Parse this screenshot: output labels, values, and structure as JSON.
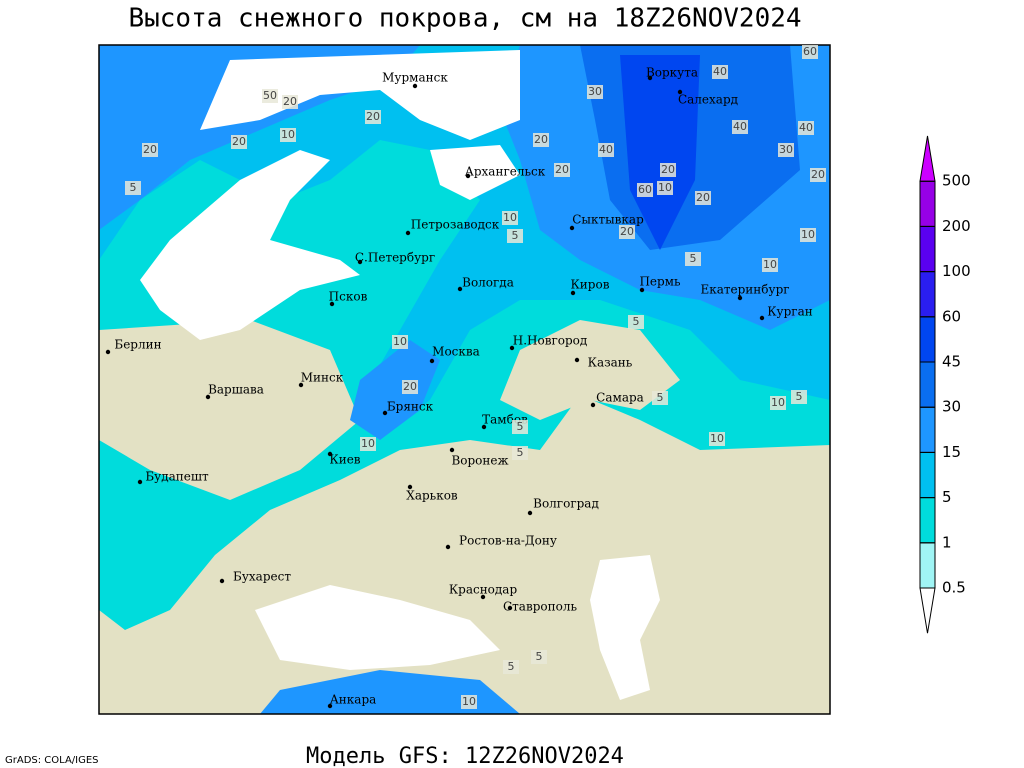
{
  "title": "Высота снежного покрова, см на 18Z26NOV2024",
  "footer": "Модель GFS: 12Z26NOV2024",
  "credit": "GrADS: COLA/IGES",
  "cities": [
    "Мурманск",
    "Воркута",
    "Салехард",
    "Архангельск",
    "Петрозаводск",
    "Сыктывкар",
    "С.Петербург",
    "Вологда",
    "Киров",
    "Пермь",
    "Екатеринбург",
    "Курган",
    "Псков",
    "Берлин",
    "Н.Новгород",
    "Казань",
    "Москва",
    "Минск",
    "Варшава",
    "Самара",
    "Брянск",
    "Тамбов",
    "Киев",
    "Воронеж",
    "Будапешт",
    "Харьков",
    "Волгоград",
    "Ростов-на-Дону",
    "Бухарест",
    "Краснодар",
    "Ставрополь",
    "Анкара"
  ],
  "contour_labels": [
    60,
    40,
    30,
    50,
    20,
    20,
    10,
    40,
    40,
    20,
    40,
    30,
    20,
    20,
    20,
    20,
    20,
    60,
    10,
    20,
    5,
    10,
    5,
    20,
    10,
    5,
    10,
    10,
    20,
    10,
    5,
    10,
    5,
    10,
    5,
    5,
    5,
    5,
    5,
    10
  ],
  "colorbar": {
    "levels": [
      0.5,
      1,
      5,
      15,
      30,
      45,
      60,
      100,
      200,
      500
    ],
    "colors": [
      "#ffffff",
      "#a0f5f5",
      "#00dcdc",
      "#00c0f0",
      "#1e96ff",
      "#0a6ef0",
      "#0046f0",
      "#2a1ef0",
      "#5a00f0",
      "#9600e6",
      "#cc00ff"
    ]
  }
}
